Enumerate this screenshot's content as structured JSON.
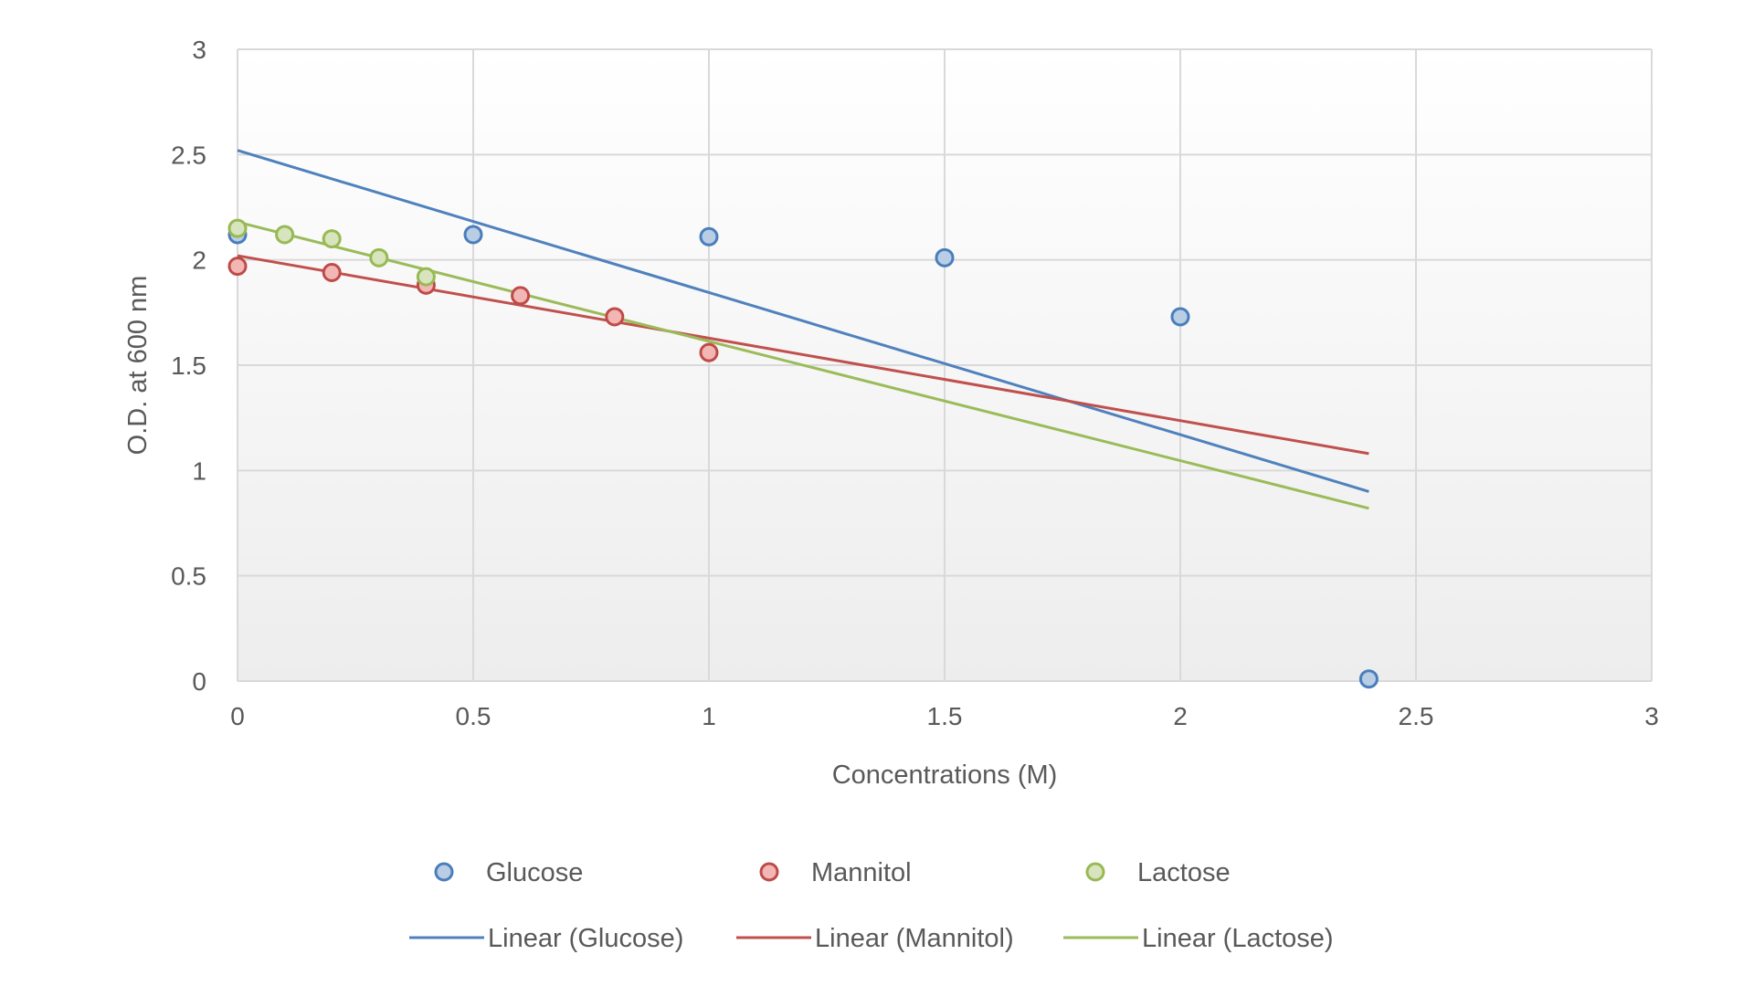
{
  "chart_data": {
    "type": "scatter",
    "title": "",
    "xlabel": "Concentrations (M)",
    "ylabel": "O.D. at 600 nm",
    "xlim": [
      0,
      3
    ],
    "ylim": [
      0,
      3
    ],
    "x_ticks": [
      0,
      0.5,
      1,
      1.5,
      2,
      2.5,
      3
    ],
    "y_ticks": [
      0,
      0.5,
      1,
      1.5,
      2,
      2.5,
      3
    ],
    "x_tick_labels": [
      "0",
      "0.5",
      "1",
      "1.5",
      "2",
      "2.5",
      "3"
    ],
    "y_tick_labels": [
      "0",
      "0.5",
      "1",
      "1.5",
      "2",
      "2.5",
      "3"
    ],
    "grid": true,
    "legend_position": "bottom",
    "series": [
      {
        "name": "Glucose",
        "color": "#4a7ebb",
        "fill": "#b9cde5",
        "points": [
          [
            0,
            2.12
          ],
          [
            0.5,
            2.12
          ],
          [
            1,
            2.11
          ],
          [
            1.5,
            2.01
          ],
          [
            2,
            1.73
          ],
          [
            2.4,
            0.01
          ]
        ]
      },
      {
        "name": "Mannitol",
        "color": "#be4b48",
        "fill": "#f2b7b5",
        "points": [
          [
            0,
            1.97
          ],
          [
            0.2,
            1.94
          ],
          [
            0.4,
            1.88
          ],
          [
            0.6,
            1.83
          ],
          [
            0.8,
            1.73
          ],
          [
            1,
            1.56
          ]
        ]
      },
      {
        "name": "Lactose",
        "color": "#98b954",
        "fill": "#d7e4bd",
        "points": [
          [
            0,
            2.15
          ],
          [
            0.1,
            2.12
          ],
          [
            0.2,
            2.1
          ],
          [
            0.3,
            2.01
          ],
          [
            0.4,
            1.92
          ]
        ]
      }
    ],
    "trendlines": [
      {
        "name": "Linear (Glucose)",
        "color": "#4f81bd",
        "x_range": [
          0,
          2.4
        ],
        "y_range": [
          2.52,
          0.9
        ]
      },
      {
        "name": "Linear (Mannitol)",
        "color": "#c0504d",
        "x_range": [
          0,
          2.4
        ],
        "y_range": [
          2.02,
          1.08
        ]
      },
      {
        "name": "Linear (Lactose)",
        "color": "#9bbb59",
        "x_range": [
          0,
          2.4
        ],
        "y_range": [
          2.18,
          0.82
        ]
      }
    ]
  }
}
